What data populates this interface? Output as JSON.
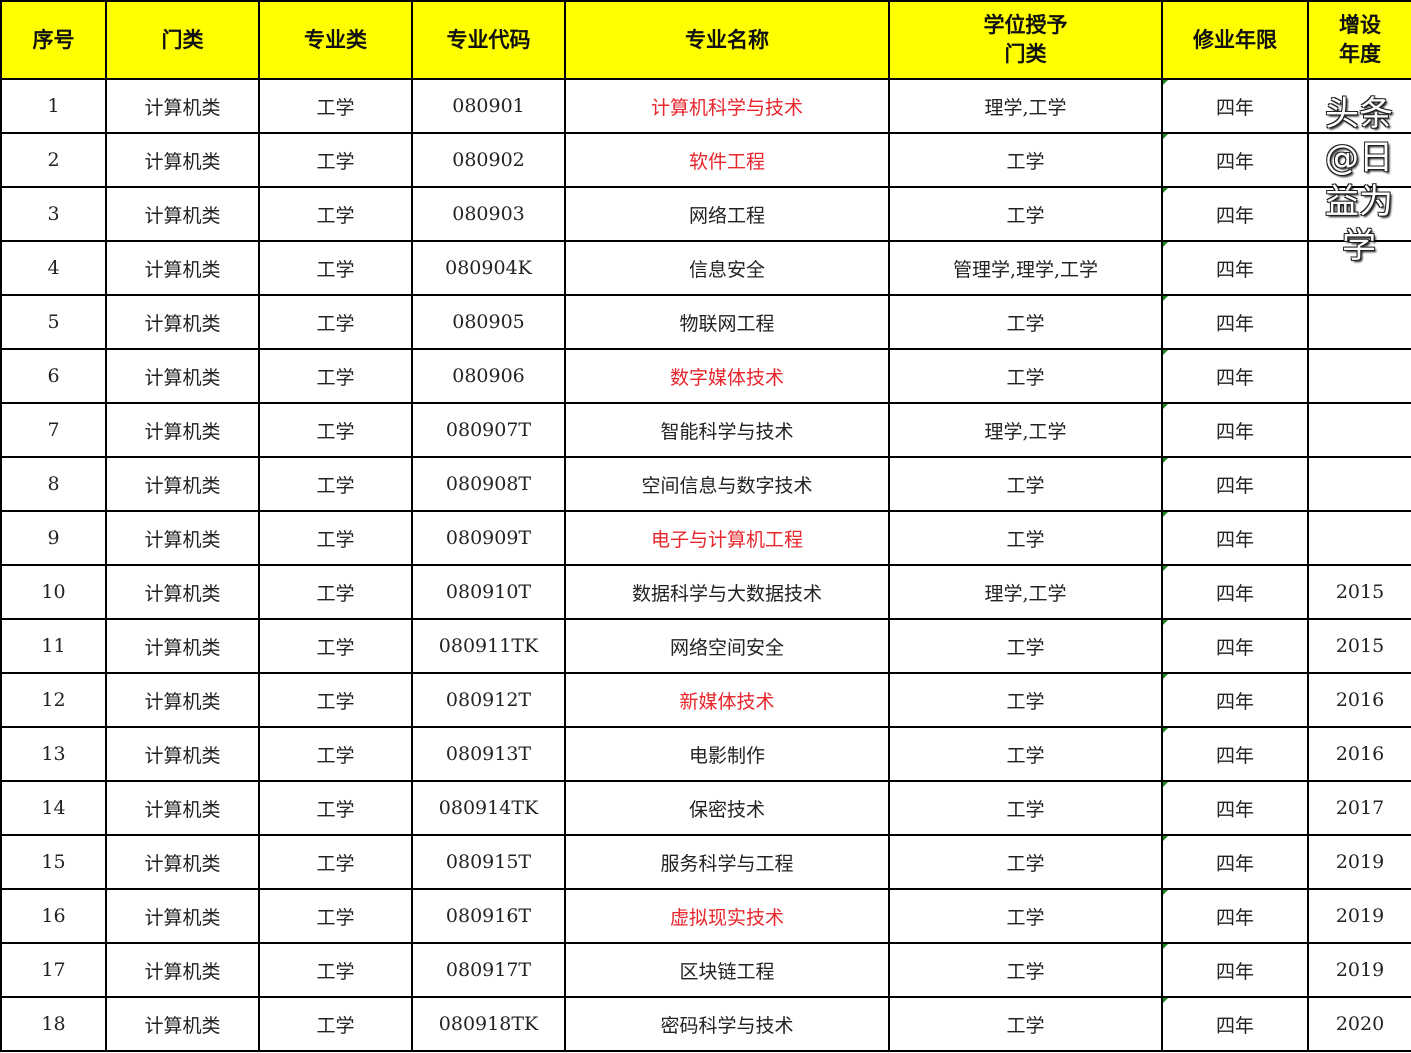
{
  "headers": [
    "序号",
    "门类",
    "专业类",
    "专业代码",
    "专业名称",
    "学位授予\n门类",
    "修业年限",
    "增设\n年度"
  ],
  "highlight_color": "#e8262c",
  "header_color": "#ffff00",
  "rows": [
    {
      "no": "1",
      "cat": "计算机类",
      "field": "工学",
      "code": "080901",
      "name": "计算机科学与技术",
      "degree": "理学,工学",
      "years": "四年",
      "added": "",
      "highlight": true
    },
    {
      "no": "2",
      "cat": "计算机类",
      "field": "工学",
      "code": "080902",
      "name": "软件工程",
      "degree": "工学",
      "years": "四年",
      "added": "",
      "highlight": true
    },
    {
      "no": "3",
      "cat": "计算机类",
      "field": "工学",
      "code": "080903",
      "name": "网络工程",
      "degree": "工学",
      "years": "四年",
      "added": "",
      "highlight": false
    },
    {
      "no": "4",
      "cat": "计算机类",
      "field": "工学",
      "code": "080904K",
      "name": "信息安全",
      "degree": "管理学,理学,工学",
      "years": "四年",
      "added": "",
      "highlight": false
    },
    {
      "no": "5",
      "cat": "计算机类",
      "field": "工学",
      "code": "080905",
      "name": "物联网工程",
      "degree": "工学",
      "years": "四年",
      "added": "",
      "highlight": false
    },
    {
      "no": "6",
      "cat": "计算机类",
      "field": "工学",
      "code": "080906",
      "name": "数字媒体技术",
      "degree": "工学",
      "years": "四年",
      "added": "",
      "highlight": true
    },
    {
      "no": "7",
      "cat": "计算机类",
      "field": "工学",
      "code": "080907T",
      "name": "智能科学与技术",
      "degree": "理学,工学",
      "years": "四年",
      "added": "",
      "highlight": false
    },
    {
      "no": "8",
      "cat": "计算机类",
      "field": "工学",
      "code": "080908T",
      "name": "空间信息与数字技术",
      "degree": "工学",
      "years": "四年",
      "added": "",
      "highlight": false
    },
    {
      "no": "9",
      "cat": "计算机类",
      "field": "工学",
      "code": "080909T",
      "name": "电子与计算机工程",
      "degree": "工学",
      "years": "四年",
      "added": "",
      "highlight": true
    },
    {
      "no": "10",
      "cat": "计算机类",
      "field": "工学",
      "code": "080910T",
      "name": "数据科学与大数据技术",
      "degree": "理学,工学",
      "years": "四年",
      "added": "2015",
      "highlight": false
    },
    {
      "no": "11",
      "cat": "计算机类",
      "field": "工学",
      "code": "080911TK",
      "name": "网络空间安全",
      "degree": "工学",
      "years": "四年",
      "added": "2015",
      "highlight": false
    },
    {
      "no": "12",
      "cat": "计算机类",
      "field": "工学",
      "code": "080912T",
      "name": "新媒体技术",
      "degree": "工学",
      "years": "四年",
      "added": "2016",
      "highlight": true
    },
    {
      "no": "13",
      "cat": "计算机类",
      "field": "工学",
      "code": "080913T",
      "name": "电影制作",
      "degree": "工学",
      "years": "四年",
      "added": "2016",
      "highlight": false
    },
    {
      "no": "14",
      "cat": "计算机类",
      "field": "工学",
      "code": "080914TK",
      "name": "保密技术",
      "degree": "工学",
      "years": "四年",
      "added": "2017",
      "highlight": false
    },
    {
      "no": "15",
      "cat": "计算机类",
      "field": "工学",
      "code": "080915T",
      "name": "服务科学与工程",
      "degree": "工学",
      "years": "四年",
      "added": "2019",
      "highlight": false
    },
    {
      "no": "16",
      "cat": "计算机类",
      "field": "工学",
      "code": "080916T",
      "name": "虚拟现实技术",
      "degree": "工学",
      "years": "四年",
      "added": "2019",
      "highlight": true
    },
    {
      "no": "17",
      "cat": "计算机类",
      "field": "工学",
      "code": "080917T",
      "name": "区块链工程",
      "degree": "工学",
      "years": "四年",
      "added": "2019",
      "highlight": false
    },
    {
      "no": "18",
      "cat": "计算机类",
      "field": "工学",
      "code": "080918TK",
      "name": "密码科学与技术",
      "degree": "工学",
      "years": "四年",
      "added": "2020",
      "highlight": false
    }
  ],
  "watermark": "头条 @日益为学"
}
